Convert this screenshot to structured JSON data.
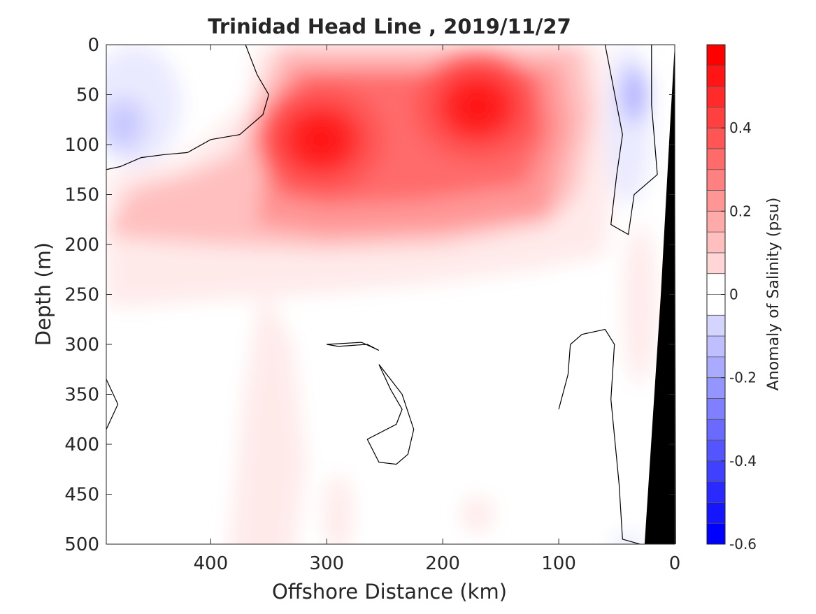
{
  "chart_data": {
    "type": "heatmap",
    "title": "Trinidad Head Line , 2019/11/27",
    "xlabel": "Offshore Distance (km)",
    "ylabel": "Depth (m)",
    "colorbar_label": "Anomaly of Salinity (psu)",
    "xlim": [
      490,
      0
    ],
    "ylim": [
      0,
      500
    ],
    "x_ticks": [
      400,
      300,
      200,
      100,
      0
    ],
    "y_ticks": [
      0,
      50,
      100,
      150,
      200,
      250,
      300,
      350,
      400,
      450,
      500
    ],
    "clim": [
      -0.6,
      0.6
    ],
    "colorbar_ticks": [
      0.4,
      0.2,
      0,
      -0.2,
      -0.4,
      -0.6
    ],
    "colormap_levels": 24,
    "colors": {
      "positive": "#ff0000",
      "negative": "#0000ff",
      "zero": "#ffffff",
      "land": "#000000"
    },
    "grid": false,
    "features": {
      "high_salinity_cores": [
        {
          "x_km": 305,
          "depth_m": 95,
          "anomaly": 0.55
        },
        {
          "x_km": 170,
          "depth_m": 62,
          "anomaly": 0.55
        }
      ],
      "low_salinity_lenses": [
        {
          "x_km": 475,
          "depth_m": 80,
          "anomaly": -0.15
        },
        {
          "x_km": 35,
          "depth_m": 50,
          "anomaly": -0.15
        }
      ]
    }
  }
}
